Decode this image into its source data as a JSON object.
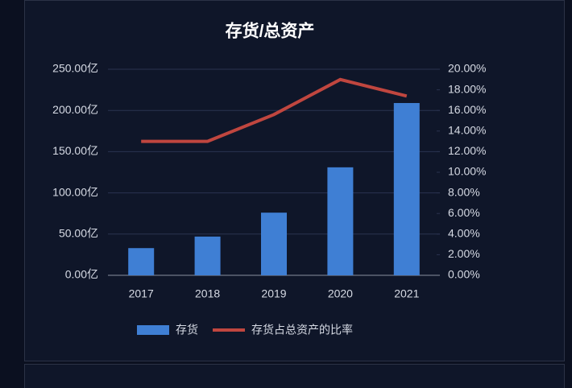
{
  "chart_data": {
    "type": "bar",
    "title": "存货/总资产",
    "categories": [
      "2017",
      "2018",
      "2019",
      "2020",
      "2021"
    ],
    "series": [
      {
        "name": "存货",
        "type": "bar",
        "color": "#3f7fd4",
        "values": [
          33,
          47,
          76,
          131,
          209
        ]
      },
      {
        "name": "存货占总资产的比率",
        "type": "line",
        "axis": "y2",
        "color": "#c0463f",
        "values": [
          13.0,
          13.0,
          15.6,
          19.0,
          17.4
        ]
      }
    ],
    "ylim": [
      0,
      250
    ],
    "yticks": [
      {
        "value": 0,
        "label": "0.00亿"
      },
      {
        "value": 50,
        "label": "50.00亿"
      },
      {
        "value": 100,
        "label": "100.00亿"
      },
      {
        "value": 150,
        "label": "150.00亿"
      },
      {
        "value": 200,
        "label": "200.00亿"
      },
      {
        "value": 250,
        "label": "250.00亿"
      }
    ],
    "y2lim": [
      0,
      20
    ],
    "y2ticks": [
      {
        "value": 0,
        "label": "0.00%"
      },
      {
        "value": 2,
        "label": "2.00%"
      },
      {
        "value": 4,
        "label": "4.00%"
      },
      {
        "value": 6,
        "label": "6.00%"
      },
      {
        "value": 8,
        "label": "8.00%"
      },
      {
        "value": 10,
        "label": "10.00%"
      },
      {
        "value": 12,
        "label": "12.00%"
      },
      {
        "value": 14,
        "label": "14.00%"
      },
      {
        "value": 16,
        "label": "16.00%"
      },
      {
        "value": 18,
        "label": "18.00%"
      },
      {
        "value": 20,
        "label": "20.00%"
      }
    ],
    "grid": true,
    "legend": "bottom"
  }
}
